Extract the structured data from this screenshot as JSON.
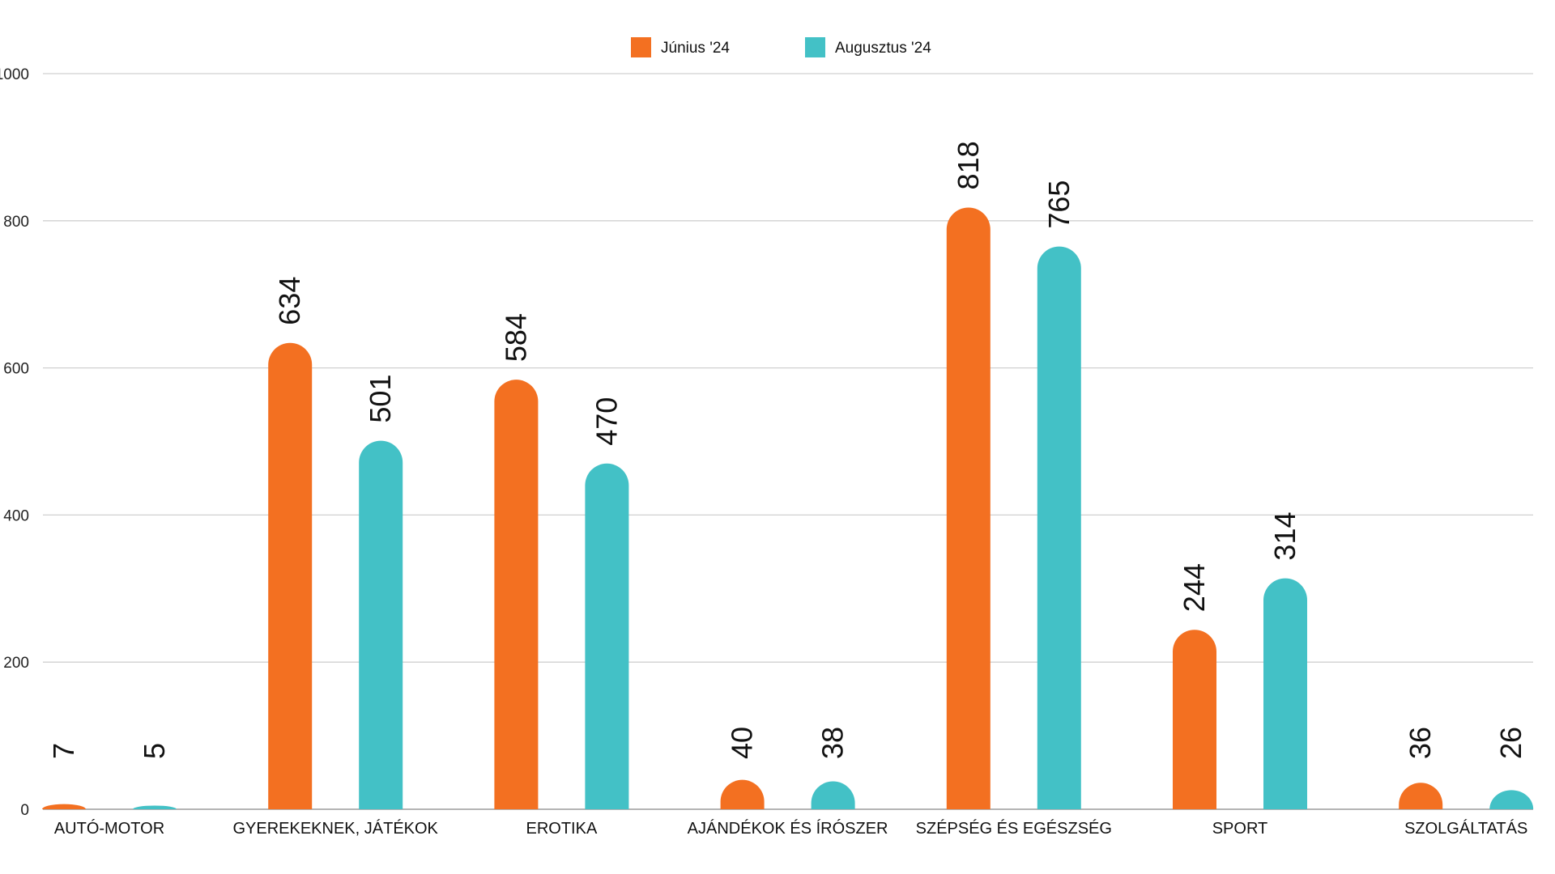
{
  "chart_data": {
    "type": "bar",
    "title": "",
    "xlabel": "",
    "ylabel": "",
    "ylim": [
      0,
      1000
    ],
    "yticks": [
      "0",
      "200",
      "400",
      "600",
      "800",
      "1000"
    ],
    "grid": true,
    "legend_position": "top-center",
    "categories": [
      "AUTÓ-MOTOR",
      "GYEREKEKNEK, JÁTÉKOK",
      "EROTIKA",
      "AJÁNDÉKOK ÉS ÍRÓSZER",
      "SZÉPSÉG ÉS EGÉSZSÉG",
      "SPORT",
      "SZOLGÁLTATÁS"
    ],
    "series": [
      {
        "name": "Június '24",
        "color": "#F37021",
        "values": [
          7,
          634,
          584,
          40,
          818,
          244,
          36
        ]
      },
      {
        "name": "Augusztus '24",
        "color": "#43C1C6",
        "values": [
          5,
          501,
          470,
          38,
          765,
          314,
          26
        ]
      }
    ]
  }
}
